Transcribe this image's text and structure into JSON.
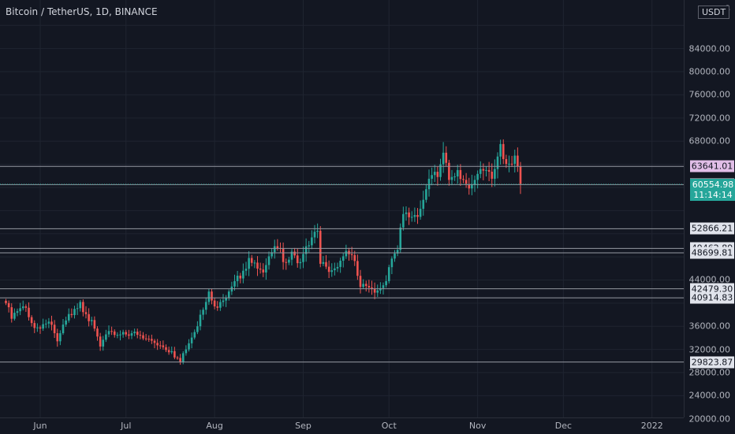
{
  "header": {
    "symbol_title": "Bitcoin / TetherUS, 1D, BINANCE",
    "currency": "USDT"
  },
  "colors": {
    "background": "#131722",
    "up": "#26a69a",
    "down": "#ef5350",
    "grid": "#1f2430",
    "level_line": "#9598a1",
    "last_price": "#26a69a",
    "highlight_tag": "#e1bee7"
  },
  "y_axis": {
    "partial_top_label": "8",
    "ticks": [
      "84000.00",
      "80000.00",
      "76000.00",
      "72000.00",
      "68000.00",
      "44000.00",
      "36000.00",
      "32000.00",
      "28000.00",
      "24000.00",
      "20000.00"
    ]
  },
  "x_axis": {
    "labels": [
      "Jun",
      "Jul",
      "Aug",
      "Sep",
      "Oct",
      "Nov",
      "Dec",
      "2022"
    ]
  },
  "last_price": {
    "price": "60554.98",
    "countdown": "11:14:14"
  },
  "levels": [
    "63641.01",
    "60489.15",
    "52866.21",
    "49462.89",
    "48699.81",
    "42479.30",
    "40914.83",
    "29823.87"
  ],
  "chart_data": {
    "type": "candlestick",
    "title": "Bitcoin / TetherUS, 1D, BINANCE",
    "y_unit": "USDT",
    "ylim": [
      16000,
      89000
    ],
    "x_range": [
      "2021-05-20",
      "2022-01-13"
    ],
    "horizontal_levels": [
      63641.01,
      60489.15,
      52866.21,
      49462.89,
      48699.81,
      42479.3,
      40914.83,
      29823.87
    ],
    "close_path": [
      [
        "2021-05-20",
        40000
      ],
      [
        "2021-05-22",
        37300
      ],
      [
        "2021-05-24",
        38600
      ],
      [
        "2021-05-27",
        39200
      ],
      [
        "2021-05-30",
        35700
      ],
      [
        "2021-06-04",
        36800
      ],
      [
        "2021-06-07",
        33400
      ],
      [
        "2021-06-10",
        37000
      ],
      [
        "2021-06-13",
        39000
      ],
      [
        "2021-06-15",
        40200
      ],
      [
        "2021-06-17",
        38100
      ],
      [
        "2021-06-20",
        35600
      ],
      [
        "2021-06-22",
        32500
      ],
      [
        "2021-06-24",
        34600
      ],
      [
        "2021-06-27",
        34500
      ],
      [
        "2021-06-30",
        35000
      ],
      [
        "2021-07-03",
        34800
      ],
      [
        "2021-07-07",
        33900
      ],
      [
        "2021-07-10",
        33500
      ],
      [
        "2021-07-13",
        32700
      ],
      [
        "2021-07-17",
        31700
      ],
      [
        "2021-07-20",
        29800
      ],
      [
        "2021-07-22",
        32000
      ],
      [
        "2021-07-25",
        35000
      ],
      [
        "2021-07-27",
        38000
      ],
      [
        "2021-07-30",
        42000
      ],
      [
        "2021-08-02",
        39200
      ],
      [
        "2021-08-05",
        40900
      ],
      [
        "2021-08-08",
        43800
      ],
      [
        "2021-08-11",
        45600
      ],
      [
        "2021-08-13",
        47800
      ],
      [
        "2021-08-15",
        47000
      ],
      [
        "2021-08-18",
        45300
      ],
      [
        "2021-08-21",
        48800
      ],
      [
        "2021-08-23",
        49500
      ],
      [
        "2021-08-26",
        47000
      ],
      [
        "2021-08-28",
        48900
      ],
      [
        "2021-08-31",
        47100
      ],
      [
        "2021-09-03",
        50000
      ],
      [
        "2021-09-06",
        52500
      ],
      [
        "2021-09-07",
        46800
      ],
      [
        "2021-09-09",
        46300
      ],
      [
        "2021-09-12",
        46000
      ],
      [
        "2021-09-15",
        48100
      ],
      [
        "2021-09-18",
        48300
      ],
      [
        "2021-09-21",
        42800
      ],
      [
        "2021-09-24",
        42700
      ],
      [
        "2021-09-27",
        42200
      ],
      [
        "2021-09-30",
        43800
      ],
      [
        "2021-10-02",
        47700
      ],
      [
        "2021-10-04",
        49200
      ],
      [
        "2021-10-06",
        55400
      ],
      [
        "2021-10-09",
        54900
      ],
      [
        "2021-10-12",
        56300
      ],
      [
        "2021-10-15",
        61500
      ],
      [
        "2021-10-18",
        61800
      ],
      [
        "2021-10-20",
        66000
      ],
      [
        "2021-10-22",
        61300
      ],
      [
        "2021-10-25",
        63000
      ],
      [
        "2021-10-28",
        60600
      ],
      [
        "2021-10-31",
        61300
      ],
      [
        "2021-11-03",
        62900
      ],
      [
        "2021-11-06",
        61500
      ],
      [
        "2021-11-09",
        67500
      ],
      [
        "2021-11-10",
        64900
      ],
      [
        "2021-11-12",
        64100
      ],
      [
        "2021-11-14",
        65500
      ],
      [
        "2021-11-15",
        63600
      ],
      [
        "2021-11-16",
        60555
      ]
    ]
  }
}
